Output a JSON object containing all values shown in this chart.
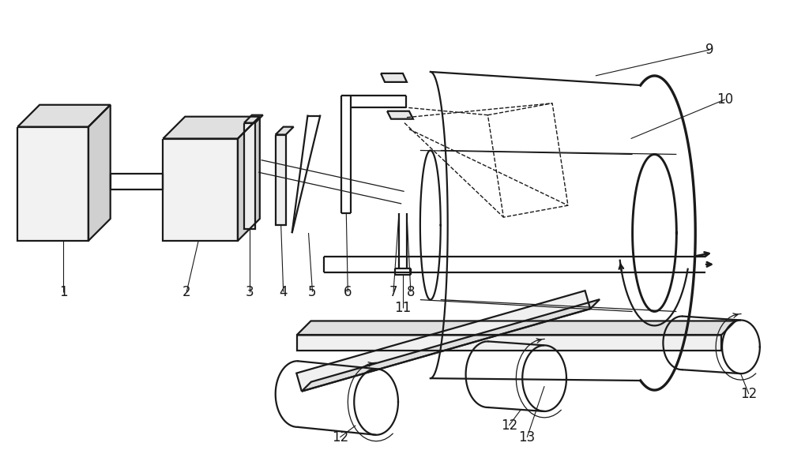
{
  "bg_color": "#ffffff",
  "lc": "#1a1a1a",
  "lw": 1.6,
  "lw_thin": 0.9,
  "lw_dash": 1.0,
  "fs": 12,
  "figsize": [
    10.0,
    5.94
  ],
  "dpi": 100
}
